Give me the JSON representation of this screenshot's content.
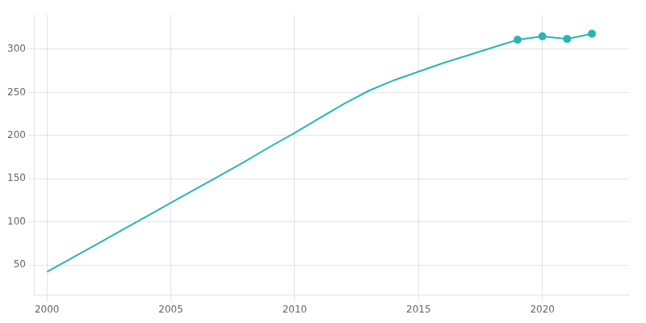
{
  "chart_data": {
    "type": "line",
    "x": [
      2000,
      2001,
      2002,
      2003,
      2004,
      2005,
      2006,
      2007,
      2008,
      2009,
      2010,
      2011,
      2012,
      2013,
      2014,
      2015,
      2016,
      2017,
      2018,
      2019,
      2020,
      2021,
      2022
    ],
    "series": [
      {
        "values": [
          42,
          58,
          74,
          90,
          106,
          122,
          138,
          154,
          170,
          187,
          203,
          220,
          237,
          252,
          264,
          274,
          284,
          293,
          302,
          311,
          315,
          312,
          318
        ],
        "color": "#2ab5b5",
        "marker": "none",
        "line_style": "solid"
      },
      {
        "values": [
          null,
          null,
          null,
          null,
          null,
          null,
          null,
          null,
          null,
          null,
          null,
          null,
          null,
          null,
          null,
          null,
          null,
          null,
          null,
          311,
          315,
          312,
          318
        ],
        "color": "#2ab5b5",
        "marker": "circle",
        "line_style": "none"
      }
    ],
    "xlim": [
      1999.5,
      2023.5
    ],
    "xticks": [
      2000,
      2005,
      2010,
      2015,
      2020
    ],
    "ylim": [
      15,
      340
    ],
    "yticks": [
      50,
      100,
      150,
      200,
      250,
      300
    ],
    "grid": true
  }
}
